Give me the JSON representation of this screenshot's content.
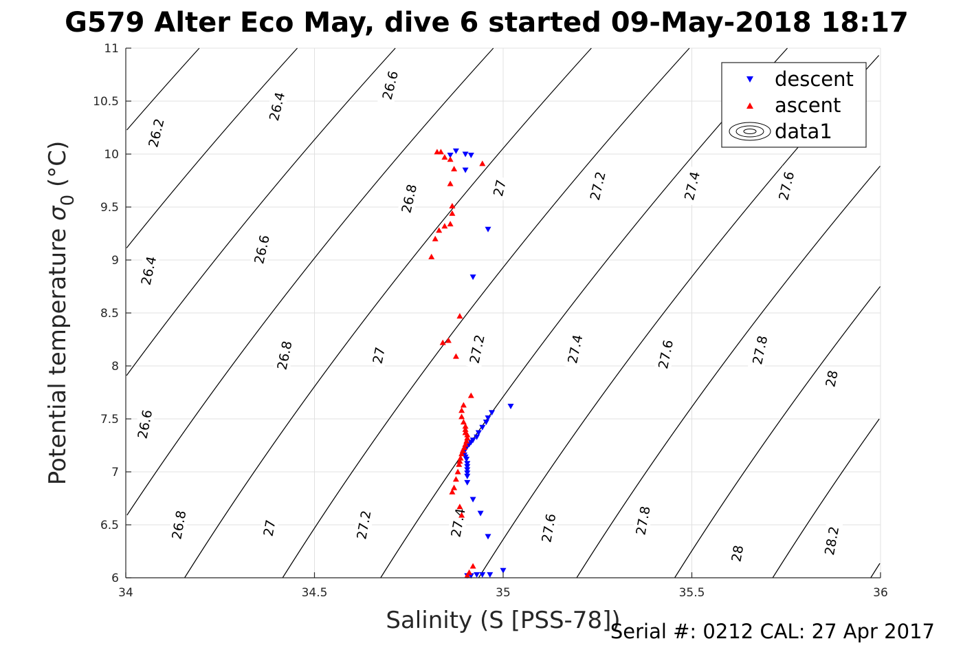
{
  "chart_data": {
    "type": "scatter",
    "title": "G579 Alter Eco May, dive 6 started 09-May-2018 18:17",
    "xlabel": "Salinity (S [PSS-78])",
    "ylabel": "Potential temperature",
    "ylabel_suffix": "(°C)",
    "ylabel_symbol": "σ",
    "ylabel_subscript": "0",
    "footnote": "Serial #: 0212  CAL: 27 Apr 2017",
    "xlim": [
      34,
      36
    ],
    "ylim": [
      6,
      11
    ],
    "xticks": [
      34,
      34.5,
      35,
      35.5,
      36
    ],
    "xtick_labels": [
      "34",
      "34.5",
      "35",
      "35.5",
      "36"
    ],
    "yticks": [
      6,
      6.5,
      7,
      7.5,
      8,
      8.5,
      9,
      9.5,
      10,
      10.5,
      11
    ],
    "ytick_labels": [
      "6",
      "6.5",
      "7",
      "7.5",
      "8",
      "8.5",
      "9",
      "9.5",
      "10",
      "10.5",
      "11"
    ],
    "grid": true,
    "legend_position": "top-right",
    "legend": [
      "descent",
      "ascent",
      "data1"
    ],
    "series": [
      {
        "name": "descent",
        "color": "#0000ff",
        "marker": "triangle-down",
        "points": [
          [
            34.875,
            10.03
          ],
          [
            34.86,
            9.99
          ],
          [
            34.9,
            10.0
          ],
          [
            34.915,
            9.99
          ],
          [
            34.9,
            9.85
          ],
          [
            34.96,
            9.29
          ],
          [
            34.92,
            8.84
          ],
          [
            35.02,
            7.62
          ],
          [
            34.97,
            7.56
          ],
          [
            34.96,
            7.51
          ],
          [
            34.955,
            7.47
          ],
          [
            34.945,
            7.42
          ],
          [
            34.935,
            7.37
          ],
          [
            34.93,
            7.33
          ],
          [
            34.92,
            7.3
          ],
          [
            34.915,
            7.28
          ],
          [
            34.91,
            7.26
          ],
          [
            34.905,
            7.24
          ],
          [
            34.9,
            7.22
          ],
          [
            34.898,
            7.2
          ],
          [
            34.895,
            7.18
          ],
          [
            34.897,
            7.16
          ],
          [
            34.9,
            7.14
          ],
          [
            34.903,
            7.12
          ],
          [
            34.905,
            7.08
          ],
          [
            34.905,
            7.05
          ],
          [
            34.905,
            7.02
          ],
          [
            34.905,
            6.99
          ],
          [
            34.905,
            6.96
          ],
          [
            34.905,
            6.9
          ],
          [
            34.92,
            6.74
          ],
          [
            34.94,
            6.61
          ],
          [
            34.96,
            6.39
          ],
          [
            35.0,
            6.07
          ],
          [
            34.965,
            6.03
          ],
          [
            34.945,
            6.03
          ],
          [
            34.93,
            6.03
          ],
          [
            34.915,
            6.02
          ],
          [
            34.905,
            6.02
          ]
        ]
      },
      {
        "name": "ascent",
        "color": "#ff0000",
        "marker": "triangle-up",
        "points": [
          [
            34.825,
            10.02
          ],
          [
            34.835,
            10.02
          ],
          [
            34.845,
            9.97
          ],
          [
            34.86,
            9.95
          ],
          [
            34.87,
            9.86
          ],
          [
            34.945,
            9.91
          ],
          [
            34.86,
            9.72
          ],
          [
            34.865,
            9.51
          ],
          [
            34.865,
            9.44
          ],
          [
            34.86,
            9.34
          ],
          [
            34.845,
            9.32
          ],
          [
            34.83,
            9.28
          ],
          [
            34.82,
            9.2
          ],
          [
            34.81,
            9.03
          ],
          [
            34.885,
            8.47
          ],
          [
            34.855,
            8.24
          ],
          [
            34.84,
            8.22
          ],
          [
            34.875,
            8.09
          ],
          [
            34.915,
            7.72
          ],
          [
            34.895,
            7.63
          ],
          [
            34.89,
            7.58
          ],
          [
            34.89,
            7.52
          ],
          [
            34.895,
            7.47
          ],
          [
            34.9,
            7.43
          ],
          [
            34.9,
            7.4
          ],
          [
            34.9,
            7.37
          ],
          [
            34.905,
            7.35
          ],
          [
            34.905,
            7.32
          ],
          [
            34.903,
            7.29
          ],
          [
            34.9,
            7.26
          ],
          [
            34.897,
            7.23
          ],
          [
            34.893,
            7.2
          ],
          [
            34.89,
            7.17
          ],
          [
            34.887,
            7.13
          ],
          [
            34.885,
            7.1
          ],
          [
            34.883,
            7.07
          ],
          [
            34.88,
            7.0
          ],
          [
            34.875,
            6.93
          ],
          [
            34.87,
            6.85
          ],
          [
            34.865,
            6.81
          ],
          [
            34.885,
            6.67
          ],
          [
            34.89,
            6.59
          ],
          [
            34.92,
            6.11
          ],
          [
            34.91,
            6.05
          ],
          [
            34.905,
            6.02
          ]
        ]
      }
    ],
    "isopycnal_labels": [
      [
        "26.2",
        34.08,
        10.2
      ],
      [
        "26.4",
        34.4,
        10.45
      ],
      [
        "26.6",
        34.7,
        10.65
      ],
      [
        "26.4",
        34.06,
        8.9
      ],
      [
        "26.6",
        34.36,
        9.1
      ],
      [
        "26.8",
        34.75,
        9.58
      ],
      [
        "27",
        34.99,
        9.68
      ],
      [
        "27.2",
        35.25,
        9.7
      ],
      [
        "27.4",
        35.5,
        9.7
      ],
      [
        "27.6",
        35.75,
        9.7
      ],
      [
        "26.6",
        34.05,
        7.45
      ],
      [
        "26.8",
        34.42,
        8.1
      ],
      [
        "27",
        34.67,
        8.1
      ],
      [
        "27.2",
        34.93,
        8.16
      ],
      [
        "27.4",
        35.19,
        8.16
      ],
      [
        "27.6",
        35.43,
        8.11
      ],
      [
        "27.8",
        35.68,
        8.15
      ],
      [
        "28",
        35.87,
        7.88
      ],
      [
        "26.8",
        34.14,
        6.5
      ],
      [
        "27",
        34.38,
        6.47
      ],
      [
        "27.2",
        34.63,
        6.5
      ],
      [
        "27.4",
        34.88,
        6.52
      ],
      [
        "27.6",
        35.12,
        6.47
      ],
      [
        "27.8",
        35.37,
        6.54
      ],
      [
        "28",
        35.62,
        6.23
      ],
      [
        "28.2",
        35.87,
        6.35
      ]
    ]
  }
}
